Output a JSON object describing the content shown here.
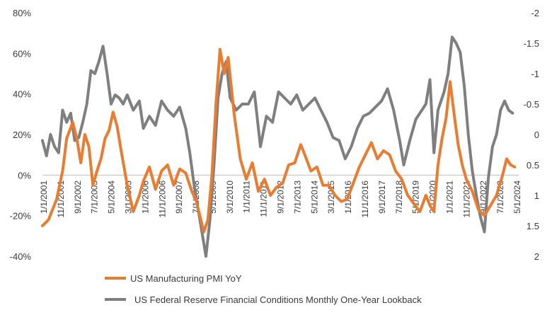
{
  "chart_data": {
    "type": "line",
    "x_tick_labels": [
      "1/1/2001",
      "11/1/2001",
      "9/1/2002",
      "7/1/2003",
      "5/1/2004",
      "3/1/2005",
      "1/1/2006",
      "11/1/2006",
      "9/1/2007",
      "7/1/2008",
      "5/1/2009",
      "3/1/2010",
      "1/1/2011",
      "11/1/2011",
      "9/1/2012",
      "7/1/2013",
      "5/1/2014",
      "3/1/2015",
      "1/1/2016",
      "11/1/2016",
      "9/1/2017",
      "7/1/2018",
      "5/1/2019",
      "3/1/2020",
      "1/1/2021",
      "11/1/2021",
      "9/1/2022",
      "7/1/2023",
      "5/1/2024"
    ],
    "x_range": [
      2001.0,
      2024.6
    ],
    "y_left": {
      "ticks": [
        "80%",
        "60%",
        "40%",
        "20%",
        "0%",
        "-20%",
        "-40%"
      ],
      "range": [
        -0.4,
        0.8
      ]
    },
    "y_right": {
      "ticks": [
        "-2",
        "-1.5",
        "-1",
        "-0.5",
        "0",
        "0.5",
        "1",
        "1.5",
        "2"
      ],
      "range": [
        -2,
        2
      ],
      "inverted": true
    },
    "legend_position": "bottom-left",
    "series": [
      {
        "name": "US Manufacturing PMI YoY",
        "axis": "left",
        "color": "#E97C30",
        "points": [
          [
            2001.0,
            -0.25
          ],
          [
            2001.3,
            -0.22
          ],
          [
            2001.7,
            -0.12
          ],
          [
            2002.0,
            0.02
          ],
          [
            2002.2,
            0.18
          ],
          [
            2002.5,
            0.26
          ],
          [
            2002.7,
            0.18
          ],
          [
            2002.9,
            0.06
          ],
          [
            2003.1,
            0.2
          ],
          [
            2003.3,
            0.14
          ],
          [
            2003.5,
            -0.05
          ],
          [
            2003.7,
            0.02
          ],
          [
            2003.9,
            0.08
          ],
          [
            2004.1,
            0.18
          ],
          [
            2004.3,
            0.22
          ],
          [
            2004.5,
            0.31
          ],
          [
            2004.7,
            0.24
          ],
          [
            2004.9,
            0.12
          ],
          [
            2005.2,
            -0.05
          ],
          [
            2005.5,
            -0.18
          ],
          [
            2005.8,
            -0.1
          ],
          [
            2006.0,
            -0.03
          ],
          [
            2006.3,
            0.04
          ],
          [
            2006.6,
            -0.07
          ],
          [
            2006.9,
            0.02
          ],
          [
            2007.2,
            0.05
          ],
          [
            2007.5,
            -0.05
          ],
          [
            2007.8,
            0.03
          ],
          [
            2008.1,
            0.01
          ],
          [
            2008.4,
            -0.08
          ],
          [
            2008.6,
            -0.12
          ],
          [
            2008.8,
            -0.2
          ],
          [
            2009.0,
            -0.28
          ],
          [
            2009.2,
            -0.22
          ],
          [
            2009.4,
            0.0
          ],
          [
            2009.6,
            0.35
          ],
          [
            2009.8,
            0.62
          ],
          [
            2010.0,
            0.5
          ],
          [
            2010.2,
            0.58
          ],
          [
            2010.5,
            0.3
          ],
          [
            2010.8,
            0.08
          ],
          [
            2011.1,
            -0.02
          ],
          [
            2011.4,
            0.06
          ],
          [
            2011.7,
            -0.08
          ],
          [
            2012.0,
            -0.02
          ],
          [
            2012.3,
            -0.1
          ],
          [
            2012.6,
            -0.06
          ],
          [
            2012.9,
            -0.04
          ],
          [
            2013.2,
            0.05
          ],
          [
            2013.5,
            0.06
          ],
          [
            2013.8,
            0.15
          ],
          [
            2014.0,
            0.1
          ],
          [
            2014.3,
            0.02
          ],
          [
            2014.6,
            0.04
          ],
          [
            2014.9,
            -0.05
          ],
          [
            2015.2,
            -0.05
          ],
          [
            2015.5,
            -0.1
          ],
          [
            2015.8,
            -0.13
          ],
          [
            2016.1,
            -0.12
          ],
          [
            2016.4,
            -0.04
          ],
          [
            2016.7,
            0.04
          ],
          [
            2017.0,
            0.1
          ],
          [
            2017.3,
            0.16
          ],
          [
            2017.6,
            0.08
          ],
          [
            2017.9,
            0.12
          ],
          [
            2018.2,
            0.1
          ],
          [
            2018.5,
            0.02
          ],
          [
            2018.8,
            -0.02
          ],
          [
            2019.1,
            -0.1
          ],
          [
            2019.4,
            -0.14
          ],
          [
            2019.7,
            -0.18
          ],
          [
            2020.0,
            -0.1
          ],
          [
            2020.2,
            -0.15
          ],
          [
            2020.4,
            -0.18
          ],
          [
            2020.6,
            0.05
          ],
          [
            2020.8,
            0.18
          ],
          [
            2021.0,
            0.28
          ],
          [
            2021.2,
            0.46
          ],
          [
            2021.4,
            0.3
          ],
          [
            2021.6,
            0.15
          ],
          [
            2021.8,
            0.05
          ],
          [
            2022.0,
            -0.02
          ],
          [
            2022.3,
            -0.08
          ],
          [
            2022.6,
            -0.17
          ],
          [
            2022.9,
            -0.2
          ],
          [
            2023.2,
            -0.15
          ],
          [
            2023.5,
            -0.1
          ],
          [
            2023.8,
            0.0
          ],
          [
            2024.0,
            0.08
          ],
          [
            2024.2,
            0.05
          ],
          [
            2024.4,
            0.04
          ]
        ]
      },
      {
        "name": "US Federal Reserve Financial Conditions Monthly One-Year Lookback",
        "axis": "right",
        "color": "#7F7F7F",
        "points": [
          [
            2001.0,
            0.1
          ],
          [
            2001.2,
            0.35
          ],
          [
            2001.4,
            0.0
          ],
          [
            2001.6,
            0.2
          ],
          [
            2001.8,
            0.3
          ],
          [
            2002.0,
            -0.4
          ],
          [
            2002.2,
            -0.2
          ],
          [
            2002.4,
            -0.35
          ],
          [
            2002.6,
            0.1
          ],
          [
            2002.8,
            0.05
          ],
          [
            2003.0,
            -0.2
          ],
          [
            2003.2,
            -0.5
          ],
          [
            2003.4,
            -1.05
          ],
          [
            2003.6,
            -1.0
          ],
          [
            2003.8,
            -1.2
          ],
          [
            2004.0,
            -1.45
          ],
          [
            2004.2,
            -1.0
          ],
          [
            2004.4,
            -0.5
          ],
          [
            2004.6,
            -0.65
          ],
          [
            2004.8,
            -0.6
          ],
          [
            2005.0,
            -0.5
          ],
          [
            2005.2,
            -0.65
          ],
          [
            2005.5,
            -0.4
          ],
          [
            2005.8,
            -0.55
          ],
          [
            2006.0,
            -0.1
          ],
          [
            2006.3,
            -0.3
          ],
          [
            2006.6,
            -0.15
          ],
          [
            2006.9,
            -0.55
          ],
          [
            2007.2,
            -0.4
          ],
          [
            2007.5,
            -0.3
          ],
          [
            2007.8,
            -0.45
          ],
          [
            2008.1,
            -0.1
          ],
          [
            2008.3,
            0.3
          ],
          [
            2008.5,
            0.8
          ],
          [
            2008.7,
            1.2
          ],
          [
            2008.9,
            1.6
          ],
          [
            2009.1,
            2.0
          ],
          [
            2009.3,
            1.4
          ],
          [
            2009.5,
            0.5
          ],
          [
            2009.7,
            -0.6
          ],
          [
            2009.9,
            -1.0
          ],
          [
            2010.1,
            -1.2
          ],
          [
            2010.3,
            -0.6
          ],
          [
            2010.6,
            -0.4
          ],
          [
            2010.9,
            -0.5
          ],
          [
            2011.2,
            -0.5
          ],
          [
            2011.5,
            -0.7
          ],
          [
            2011.8,
            0.2
          ],
          [
            2012.1,
            -0.3
          ],
          [
            2012.4,
            -0.2
          ],
          [
            2012.7,
            -0.7
          ],
          [
            2013.0,
            -0.6
          ],
          [
            2013.3,
            -0.5
          ],
          [
            2013.6,
            -0.65
          ],
          [
            2013.9,
            -0.4
          ],
          [
            2014.2,
            -0.5
          ],
          [
            2014.5,
            -0.6
          ],
          [
            2014.8,
            -0.4
          ],
          [
            2015.1,
            -0.2
          ],
          [
            2015.4,
            0.05
          ],
          [
            2015.7,
            0.1
          ],
          [
            2016.0,
            0.4
          ],
          [
            2016.3,
            0.2
          ],
          [
            2016.6,
            -0.1
          ],
          [
            2016.9,
            -0.3
          ],
          [
            2017.2,
            -0.35
          ],
          [
            2017.5,
            -0.45
          ],
          [
            2017.8,
            -0.55
          ],
          [
            2018.1,
            -0.75
          ],
          [
            2018.4,
            -0.4
          ],
          [
            2018.7,
            0.1
          ],
          [
            2018.9,
            0.5
          ],
          [
            2019.2,
            0.1
          ],
          [
            2019.5,
            -0.25
          ],
          [
            2019.8,
            -0.4
          ],
          [
            2020.0,
            -0.5
          ],
          [
            2020.2,
            -0.9
          ],
          [
            2020.4,
            0.3
          ],
          [
            2020.6,
            -0.4
          ],
          [
            2020.9,
            -0.7
          ],
          [
            2021.1,
            -1.0
          ],
          [
            2021.3,
            -1.6
          ],
          [
            2021.5,
            -1.5
          ],
          [
            2021.7,
            -1.35
          ],
          [
            2021.9,
            -0.8
          ],
          [
            2022.1,
            0.0
          ],
          [
            2022.3,
            0.6
          ],
          [
            2022.5,
            1.0
          ],
          [
            2022.7,
            1.35
          ],
          [
            2022.9,
            1.6
          ],
          [
            2023.1,
            0.7
          ],
          [
            2023.3,
            0.2
          ],
          [
            2023.5,
            0.0
          ],
          [
            2023.7,
            -0.4
          ],
          [
            2023.9,
            -0.55
          ],
          [
            2024.1,
            -0.4
          ],
          [
            2024.3,
            -0.35
          ]
        ]
      }
    ]
  }
}
